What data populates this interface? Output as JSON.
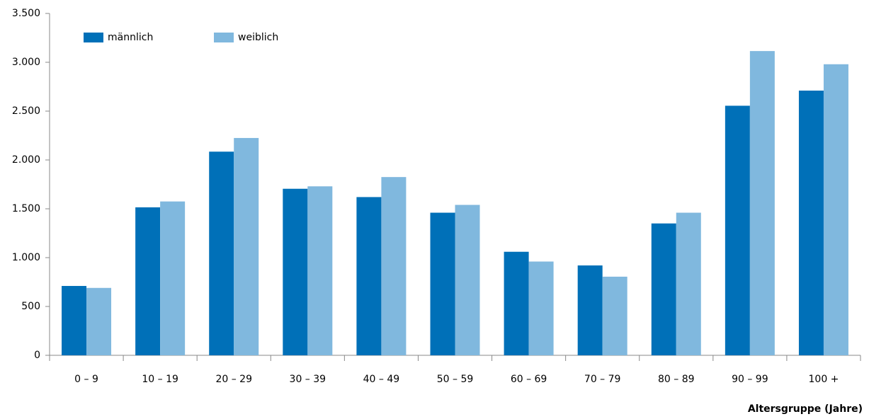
{
  "chart_data": {
    "type": "bar",
    "x_label": "Altersgruppe (Jahre)",
    "categories": [
      "0 – 9",
      "10 – 19",
      "20 – 29",
      "30 – 39",
      "40 – 49",
      "50 – 59",
      "60 – 69",
      "70 – 79",
      "80 – 89",
      "90 – 99",
      "100 +"
    ],
    "series": [
      {
        "name": "männlich",
        "color": "#0070b8",
        "values": [
          710,
          1515,
          2085,
          1705,
          1620,
          1460,
          1060,
          920,
          1350,
          2555,
          2710
        ]
      },
      {
        "name": "weiblich",
        "color": "#80b8de",
        "values": [
          690,
          1575,
          2225,
          1730,
          1825,
          1540,
          960,
          805,
          1460,
          3115,
          2980
        ]
      }
    ],
    "ylim": [
      0,
      3500
    ],
    "yticks": [
      0,
      500,
      {
        "value": 1000,
        "label": "1.000"
      },
      {
        "value": 1500,
        "label": "1.500"
      },
      {
        "value": 2000,
        "label": "2.000"
      },
      {
        "value": 2500,
        "label": "2.500"
      },
      {
        "value": 3000,
        "label": "3.000"
      },
      {
        "value": 3500,
        "label": "3.500"
      }
    ],
    "grid": false,
    "legend": "top-left"
  }
}
